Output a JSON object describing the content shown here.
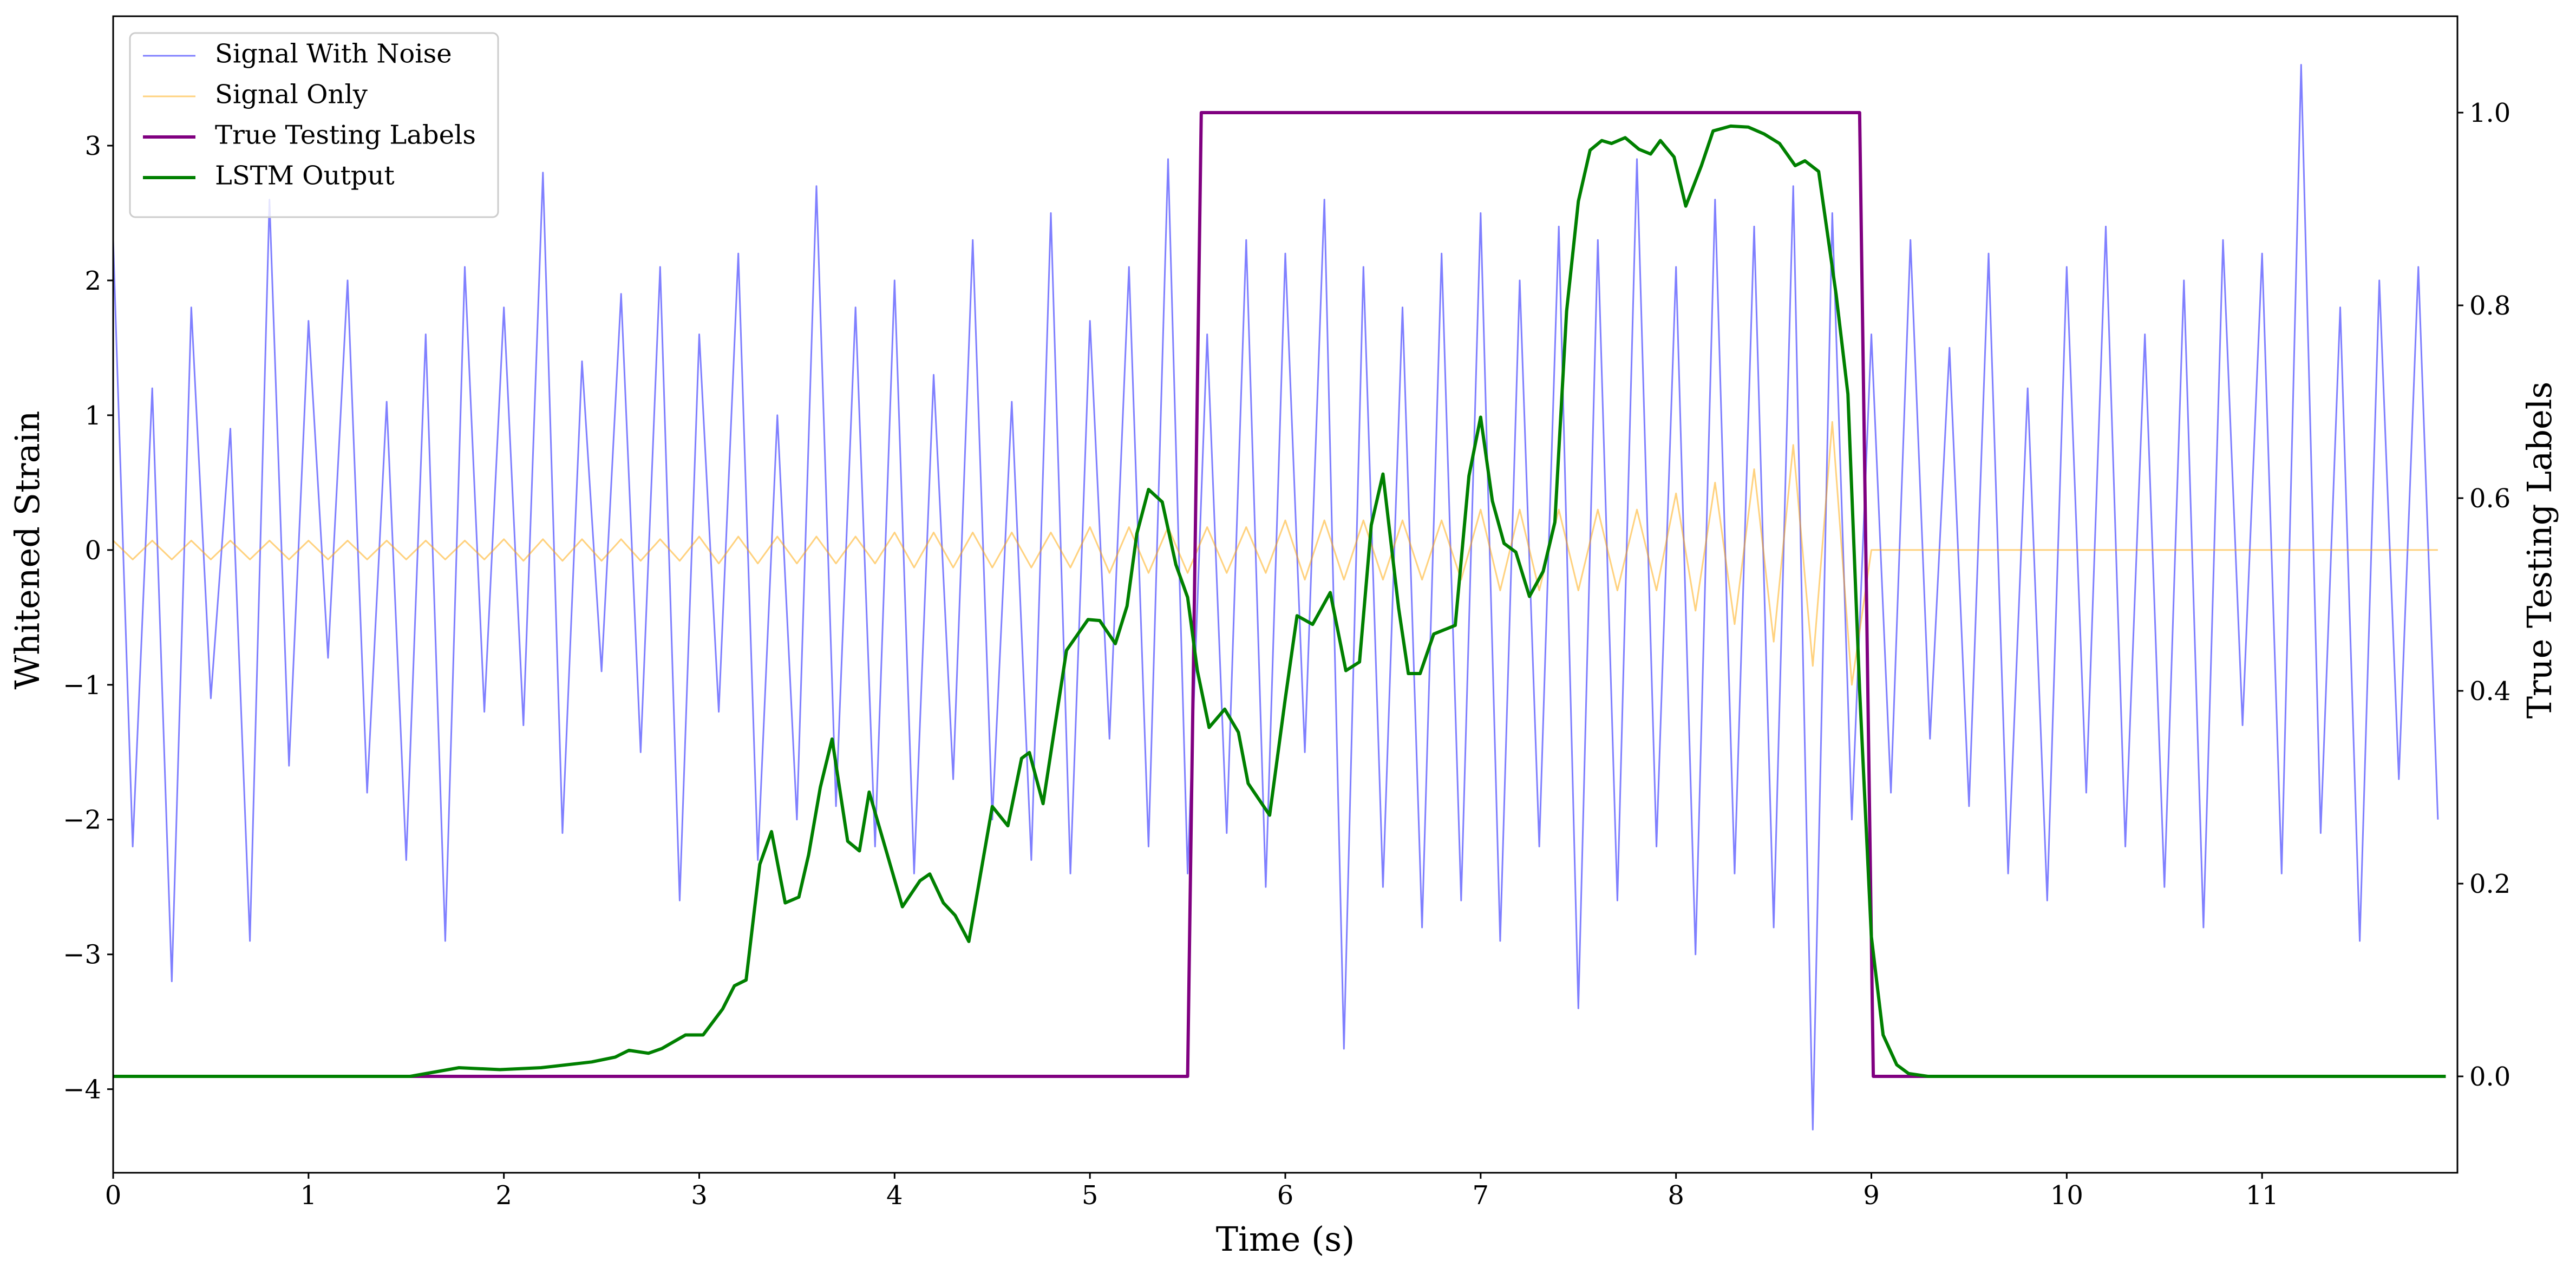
{
  "chart_data": {
    "type": "line",
    "xlabel": "Time (s)",
    "ylabel": "Whitened Strain",
    "y2label": "True Testing Labels",
    "xlim": [
      0,
      12
    ],
    "ylim": [
      -4.62,
      3.96
    ],
    "y2lim": [
      -0.1,
      1.1
    ],
    "xticks": [
      0,
      1,
      2,
      3,
      4,
      5,
      6,
      7,
      8,
      9,
      10,
      11
    ],
    "yticks": [
      {
        "value": -4,
        "label": "−4"
      },
      {
        "value": -3,
        "label": "−3"
      },
      {
        "value": -2,
        "label": "−2"
      },
      {
        "value": -1,
        "label": "−1"
      },
      0,
      1,
      2,
      3
    ],
    "y2ticks": [
      {
        "value": 0,
        "label": "0.0"
      },
      0.2,
      0.4,
      0.6,
      0.8,
      {
        "value": 1,
        "label": "1.0"
      }
    ],
    "legend": "upper left",
    "x": [
      0.0,
      0.1,
      0.2,
      0.3,
      0.4,
      0.5,
      0.6,
      0.7,
      0.8,
      0.9,
      1.0,
      1.1,
      1.2,
      1.3,
      1.4,
      1.5,
      1.6,
      1.7,
      1.8,
      1.9,
      2.0,
      2.1,
      2.2,
      2.3,
      2.4,
      2.5,
      2.6,
      2.7,
      2.8,
      2.9,
      3.0,
      3.1,
      3.2,
      3.3,
      3.4,
      3.5,
      3.6,
      3.7,
      3.8,
      3.9,
      4.0,
      4.1,
      4.2,
      4.3,
      4.4,
      4.5,
      4.6,
      4.7,
      4.8,
      4.9,
      5.0,
      5.1,
      5.2,
      5.3,
      5.4,
      5.5,
      5.6,
      5.7,
      5.8,
      5.9,
      6.0,
      6.1,
      6.2,
      6.3,
      6.4,
      6.5,
      6.6,
      6.7,
      6.8,
      6.9,
      7.0,
      7.1,
      7.2,
      7.3,
      7.4,
      7.5,
      7.6,
      7.7,
      7.8,
      7.9,
      8.0,
      8.1,
      8.2,
      8.3,
      8.4,
      8.5,
      8.6,
      8.7,
      8.8,
      8.9,
      9.0,
      9.1,
      9.2,
      9.3,
      9.4,
      9.5,
      9.6,
      9.7,
      9.8,
      9.9,
      10.0,
      10.1,
      10.2,
      10.3,
      10.4,
      10.5,
      10.6,
      10.7,
      10.8,
      10.9,
      11.0,
      11.1,
      11.2,
      11.3,
      11.4,
      11.5,
      11.6,
      11.7,
      11.8,
      11.9
    ],
    "series": [
      {
        "name": "Signal With Noise",
        "color": "#0000ff",
        "opacity": 0.5,
        "values": [
          2.3,
          -2.2,
          1.2,
          -3.2,
          1.8,
          -1.1,
          0.9,
          -2.9,
          2.6,
          -1.6,
          1.7,
          -0.8,
          2.0,
          -1.8,
          1.1,
          -2.3,
          1.6,
          -2.9,
          2.1,
          -1.2,
          1.8,
          -1.3,
          2.8,
          -2.1,
          1.4,
          -0.9,
          1.9,
          -1.5,
          2.1,
          -2.6,
          1.6,
          -1.2,
          2.2,
          -2.3,
          1.0,
          -2.0,
          2.7,
          -1.9,
          1.8,
          -2.2,
          2.0,
          -2.4,
          1.3,
          -1.7,
          2.3,
          -2.0,
          1.1,
          -2.3,
          2.5,
          -2.4,
          1.7,
          -1.4,
          2.1,
          -2.2,
          2.9,
          -2.4,
          1.6,
          -2.1,
          2.3,
          -2.5,
          2.2,
          -1.5,
          2.6,
          -3.7,
          2.1,
          -2.5,
          1.8,
          -2.8,
          2.2,
          -2.6,
          2.5,
          -2.9,
          2.0,
          -2.2,
          2.4,
          -3.4,
          2.3,
          -2.6,
          2.9,
          -2.2,
          2.1,
          -3.0,
          2.6,
          -2.4,
          2.4,
          -2.8,
          2.7,
          -4.3,
          2.5,
          -2.0,
          1.6,
          -1.8,
          2.3,
          -1.4,
          1.5,
          -1.9,
          2.2,
          -2.4,
          1.2,
          -2.6,
          2.1,
          -1.8,
          2.4,
          -2.2,
          1.6,
          -2.5,
          2.0,
          -2.8,
          2.3,
          -1.3,
          2.2,
          -2.4,
          3.6,
          -2.1,
          1.8,
          -2.9,
          2.0,
          -1.7,
          2.1,
          -2.0
        ]
      },
      {
        "name": "Signal Only",
        "color": "#ffa500",
        "opacity": 0.5,
        "values": [
          0.07,
          -0.07,
          0.07,
          -0.07,
          0.07,
          -0.07,
          0.07,
          -0.07,
          0.07,
          -0.07,
          0.07,
          -0.07,
          0.07,
          -0.07,
          0.07,
          -0.07,
          0.07,
          -0.07,
          0.07,
          -0.07,
          0.08,
          -0.08,
          0.08,
          -0.08,
          0.08,
          -0.08,
          0.08,
          -0.08,
          0.08,
          -0.08,
          0.1,
          -0.1,
          0.1,
          -0.1,
          0.1,
          -0.1,
          0.1,
          -0.1,
          0.1,
          -0.1,
          0.13,
          -0.13,
          0.13,
          -0.13,
          0.13,
          -0.13,
          0.13,
          -0.13,
          0.13,
          -0.13,
          0.17,
          -0.17,
          0.17,
          -0.17,
          0.17,
          -0.17,
          0.17,
          -0.17,
          0.17,
          -0.17,
          0.22,
          -0.22,
          0.22,
          -0.22,
          0.22,
          -0.22,
          0.22,
          -0.22,
          0.22,
          -0.22,
          0.3,
          -0.3,
          0.3,
          -0.3,
          0.3,
          -0.3,
          0.3,
          -0.3,
          0.3,
          -0.3,
          0.42,
          -0.45,
          0.5,
          -0.55,
          0.6,
          -0.68,
          0.78,
          -0.86,
          0.95,
          -1.0,
          0,
          0,
          0,
          0,
          0,
          0,
          0,
          0,
          0,
          0,
          0,
          0,
          0,
          0,
          0,
          0,
          0,
          0,
          0,
          0,
          0,
          0,
          0,
          0,
          0,
          0,
          0,
          0,
          0,
          0
        ]
      },
      {
        "name": "True Testing Labels",
        "color": "#800080",
        "axis": "y2",
        "x": [
          0,
          5.5,
          5.57,
          8.94,
          9.01,
          11.94
        ],
        "values": [
          0,
          0,
          1,
          1,
          0,
          0
        ]
      },
      {
        "name": "LSTM Output",
        "color": "#008000",
        "axis": "y2",
        "x": [
          0,
          1.52,
          1.77,
          1.98,
          2.19,
          2.45,
          2.57,
          2.64,
          2.74,
          2.81,
          2.93,
          3.02,
          3.12,
          3.18,
          3.24,
          3.31,
          3.37,
          3.44,
          3.51,
          3.56,
          3.62,
          3.68,
          3.76,
          3.82,
          3.87,
          4.04,
          4.13,
          4.18,
          4.25,
          4.31,
          4.38,
          4.5,
          4.58,
          4.65,
          4.69,
          4.76,
          4.88,
          4.99,
          5.05,
          5.13,
          5.19,
          5.24,
          5.3,
          5.37,
          5.44,
          5.5,
          5.55,
          5.61,
          5.69,
          5.76,
          5.81,
          5.92,
          6.0,
          6.06,
          6.14,
          6.23,
          6.31,
          6.38,
          6.44,
          6.5,
          6.58,
          6.63,
          6.69,
          6.76,
          6.87,
          6.94,
          7.0,
          7.06,
          7.12,
          7.18,
          7.25,
          7.32,
          7.38,
          7.44,
          7.5,
          7.56,
          7.62,
          7.67,
          7.74,
          7.81,
          7.87,
          7.92,
          7.99,
          8.05,
          8.13,
          8.19,
          8.28,
          8.37,
          8.45,
          8.53,
          8.61,
          8.66,
          8.73,
          8.82,
          8.88,
          8.94,
          9.0,
          9.06,
          9.13,
          9.19,
          9.29,
          11.94
        ],
        "values": [
          0,
          0,
          0.009,
          0.007,
          0.009,
          0.015,
          0.02,
          0.027,
          0.024,
          0.029,
          0.043,
          0.043,
          0.07,
          0.094,
          0.1,
          0.22,
          0.254,
          0.18,
          0.186,
          0.23,
          0.3,
          0.35,
          0.244,
          0.234,
          0.295,
          0.176,
          0.203,
          0.21,
          0.18,
          0.167,
          0.14,
          0.28,
          0.26,
          0.33,
          0.336,
          0.283,
          0.442,
          0.474,
          0.473,
          0.449,
          0.488,
          0.563,
          0.609,
          0.596,
          0.531,
          0.497,
          0.421,
          0.362,
          0.381,
          0.357,
          0.304,
          0.271,
          0.392,
          0.478,
          0.469,
          0.502,
          0.421,
          0.43,
          0.572,
          0.625,
          0.486,
          0.418,
          0.418,
          0.459,
          0.468,
          0.623,
          0.684,
          0.597,
          0.553,
          0.544,
          0.498,
          0.524,
          0.575,
          0.794,
          0.908,
          0.961,
          0.971,
          0.968,
          0.974,
          0.962,
          0.957,
          0.971,
          0.954,
          0.903,
          0.945,
          0.981,
          0.986,
          0.985,
          0.978,
          0.968,
          0.945,
          0.95,
          0.939,
          0.811,
          0.708,
          0.401,
          0.145,
          0.043,
          0.012,
          0.003,
          0,
          0
        ]
      }
    ]
  }
}
